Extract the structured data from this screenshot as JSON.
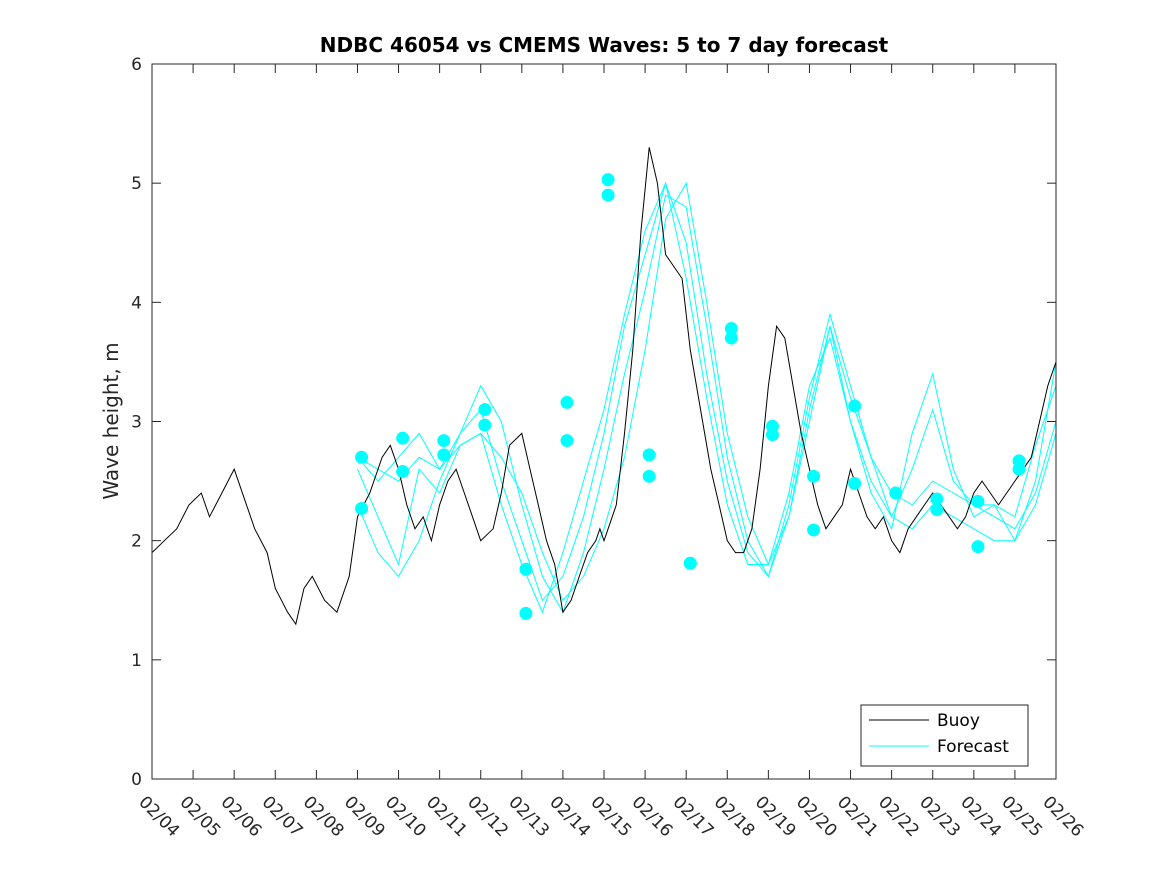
{
  "chart_data": {
    "type": "line",
    "title": "NDBC 46054 vs CMEMS Waves: 5 to 7 day forecast",
    "xlabel": "",
    "ylabel": "Wave height, m",
    "xlim": [
      0,
      22
    ],
    "ylim": [
      0,
      6
    ],
    "x_tick_labels": [
      "02/04",
      "02/05",
      "02/06",
      "02/07",
      "02/08",
      "02/09",
      "02/10",
      "02/11",
      "02/12",
      "02/13",
      "02/14",
      "02/15",
      "02/16",
      "02/17",
      "02/18",
      "02/19",
      "02/20",
      "02/21",
      "02/22",
      "02/23",
      "02/24",
      "02/25",
      "02/26"
    ],
    "y_ticks": [
      0,
      1,
      2,
      3,
      4,
      5,
      6
    ],
    "legend": {
      "placement": "bottom-right",
      "entries": [
        "Buoy",
        "Forecast"
      ]
    },
    "colors": {
      "buoy": "#000000",
      "forecast": "#00ffff",
      "axes": "#262626"
    },
    "series": [
      {
        "name": "Buoy",
        "x": [
          0,
          0.3,
          0.6,
          0.9,
          1.2,
          1.4,
          1.7,
          2.0,
          2.3,
          2.5,
          2.8,
          3.0,
          3.3,
          3.5,
          3.7,
          3.9,
          4.2,
          4.5,
          4.8,
          5.0,
          5.3,
          5.6,
          5.8,
          6.0,
          6.2,
          6.4,
          6.6,
          6.8,
          7.0,
          7.2,
          7.4,
          7.6,
          7.8,
          8.0,
          8.3,
          8.5,
          8.7,
          9.0,
          9.2,
          9.4,
          9.6,
          9.8,
          10.0,
          10.2,
          10.4,
          10.6,
          10.8,
          10.9,
          11.0,
          11.1,
          11.3,
          11.5,
          11.7,
          11.9,
          12.1,
          12.3,
          12.5,
          12.7,
          12.9,
          13.1,
          13.4,
          13.6,
          13.8,
          14.0,
          14.2,
          14.4,
          14.6,
          14.8,
          15.0,
          15.2,
          15.4,
          15.6,
          15.8,
          16.0,
          16.2,
          16.4,
          16.6,
          16.8,
          17.0,
          17.2,
          17.4,
          17.6,
          17.8,
          18.0,
          18.2,
          18.4,
          18.6,
          18.8,
          19.0,
          19.2,
          19.4,
          19.6,
          19.8,
          20.0,
          20.2,
          20.4,
          20.6,
          20.8,
          21.0,
          21.2,
          21.4,
          21.6,
          21.8,
          22.0
        ],
        "values": [
          1.9,
          2.0,
          2.1,
          2.3,
          2.4,
          2.2,
          2.4,
          2.6,
          2.3,
          2.1,
          1.9,
          1.6,
          1.4,
          1.3,
          1.6,
          1.7,
          1.5,
          1.4,
          1.7,
          2.2,
          2.4,
          2.7,
          2.8,
          2.6,
          2.3,
          2.1,
          2.2,
          2.0,
          2.3,
          2.5,
          2.6,
          2.4,
          2.2,
          2.0,
          2.1,
          2.4,
          2.8,
          2.9,
          2.6,
          2.3,
          2.0,
          1.8,
          1.4,
          1.5,
          1.7,
          1.9,
          2.0,
          2.1,
          2.0,
          2.1,
          2.3,
          2.9,
          3.6,
          4.6,
          5.3,
          5.0,
          4.4,
          4.3,
          4.2,
          3.6,
          3.0,
          2.6,
          2.3,
          2.0,
          1.9,
          1.9,
          2.1,
          2.6,
          3.3,
          3.8,
          3.7,
          3.3,
          2.9,
          2.6,
          2.3,
          2.1,
          2.2,
          2.3,
          2.6,
          2.4,
          2.2,
          2.1,
          2.2,
          2.0,
          1.9,
          2.1,
          2.2,
          2.3,
          2.4,
          2.3,
          2.2,
          2.1,
          2.2,
          2.4,
          2.5,
          2.4,
          2.3,
          2.4,
          2.5,
          2.6,
          2.7,
          3.0,
          3.3,
          3.5
        ]
      },
      {
        "name": "Forecast",
        "lines": [
          {
            "x": [
              5.0,
              5.5,
              6.0,
              6.5,
              7.0,
              7.5,
              8.0,
              8.5,
              9.0,
              9.5,
              10.0,
              10.5,
              11.0,
              11.5,
              12.0,
              12.5,
              13.0,
              13.5,
              14.0,
              14.5,
              15.0,
              15.5,
              16.0,
              16.5,
              17.0,
              17.5,
              18.0,
              18.5,
              19.0,
              19.5,
              20.0,
              20.5,
              21.0,
              21.5,
              22.0
            ],
            "values": [
              2.7,
              2.6,
              2.5,
              2.7,
              2.6,
              2.8,
              2.9,
              2.7,
              2.4,
              1.9,
              1.5,
              1.7,
              2.1,
              2.7,
              3.6,
              4.7,
              5.0,
              4.0,
              2.9,
              2.2,
              1.8,
              2.2,
              3.0,
              3.8,
              3.2,
              2.7,
              2.4,
              2.3,
              2.5,
              2.4,
              2.3,
              2.2,
              2.1,
              2.4,
              3.0
            ]
          },
          {
            "x": [
              5.0,
              5.5,
              6.0,
              6.5,
              7.0,
              7.5,
              8.0,
              8.5,
              9.0,
              9.5,
              10.0,
              10.5,
              11.0,
              11.5,
              12.0,
              12.5,
              13.0,
              13.5,
              14.0,
              14.5,
              15.0,
              15.5,
              16.0,
              16.5,
              17.0,
              17.5,
              18.0,
              18.5,
              19.0,
              19.5,
              20.0,
              20.5,
              21.0,
              21.5,
              22.0
            ],
            "values": [
              2.3,
              1.9,
              1.7,
              2.0,
              2.5,
              2.9,
              3.3,
              3.0,
              2.3,
              1.7,
              1.4,
              1.9,
              2.6,
              3.4,
              4.1,
              4.9,
              4.8,
              3.8,
              2.7,
              2.0,
              1.7,
              2.3,
              3.2,
              3.9,
              3.3,
              2.7,
              2.2,
              2.1,
              2.3,
              2.2,
              2.1,
              2.0,
              2.0,
              2.3,
              2.9
            ]
          },
          {
            "x": [
              5.0,
              5.5,
              6.0,
              6.5,
              7.0,
              7.5,
              8.0,
              8.5,
              9.0,
              9.5,
              10.0,
              10.5,
              11.0,
              11.5,
              12.0,
              12.5,
              13.0,
              13.5,
              14.0,
              14.5,
              15.0,
              15.5,
              16.0,
              16.5,
              17.0,
              17.5,
              18.0,
              18.5,
              19.0,
              19.5,
              20.0,
              20.5,
              21.0,
              21.5,
              22.0
            ],
            "values": [
              2.7,
              2.5,
              2.7,
              2.9,
              2.6,
              2.9,
              3.1,
              2.5,
              2.0,
              1.5,
              1.7,
              2.2,
              2.9,
              3.8,
              4.4,
              5.0,
              4.5,
              3.4,
              2.5,
              1.9,
              1.7,
              2.2,
              3.1,
              3.8,
              3.0,
              2.5,
              2.2,
              2.6,
              3.1,
              2.5,
              2.3,
              2.3,
              2.0,
              2.5,
              3.5
            ]
          },
          {
            "x": [
              5.0,
              5.5,
              6.0,
              6.5,
              7.0,
              7.5,
              8.0,
              8.5,
              9.0,
              9.5,
              10.0,
              10.5,
              11.0,
              11.5,
              12.0,
              12.5,
              13.0,
              13.5,
              14.0,
              14.5,
              15.0,
              15.5,
              16.0,
              16.5,
              17.0,
              17.5,
              18.0,
              18.5,
              19.0,
              19.5,
              20.0,
              20.5,
              21.0,
              21.5,
              22.0
            ],
            "values": [
              2.6,
              2.2,
              1.8,
              2.6,
              2.4,
              2.8,
              2.9,
              2.3,
              1.8,
              1.4,
              1.9,
              2.5,
              3.1,
              3.9,
              4.6,
              5.0,
              4.2,
              3.2,
              2.3,
              1.8,
              1.8,
              2.4,
              3.3,
              3.7,
              3.0,
              2.4,
              2.1,
              2.9,
              3.4,
              2.6,
              2.2,
              2.3,
              2.2,
              2.8,
              3.3
            ]
          }
        ],
        "markers": {
          "x": [
            5.1,
            5.1,
            6.1,
            6.1,
            7.1,
            7.1,
            8.1,
            8.1,
            9.1,
            9.1,
            10.1,
            10.1,
            11.1,
            11.1,
            12.1,
            12.1,
            13.1,
            13.1,
            14.1,
            14.1,
            15.1,
            15.1,
            16.1,
            16.1,
            17.1,
            17.1,
            18.1,
            19.1,
            19.1,
            20.1,
            20.1,
            21.1,
            21.1
          ],
          "values": [
            2.7,
            2.27,
            2.86,
            2.58,
            2.84,
            2.72,
            3.1,
            2.97,
            1.76,
            1.39,
            3.16,
            2.84,
            5.03,
            4.9,
            2.72,
            2.54,
            1.81,
            1.81,
            3.78,
            3.7,
            2.96,
            2.89,
            2.54,
            2.09,
            3.13,
            2.48,
            2.4,
            2.26,
            2.35,
            2.33,
            1.95,
            2.67,
            2.6
          ]
        }
      }
    ]
  }
}
